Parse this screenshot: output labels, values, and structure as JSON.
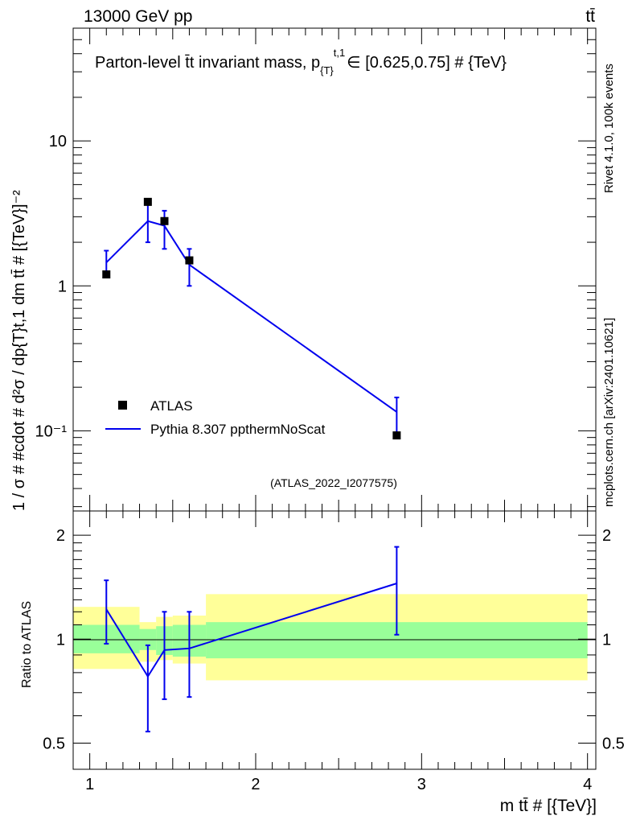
{
  "header": {
    "energy_label": "13000 GeV pp",
    "process_label": "tt̄"
  },
  "side_labels": {
    "rivet": "Rivet 4.1.0,  100k events",
    "mcplots": "mcplots.cern.ch [arXiv:2401.10621]"
  },
  "chart_data": [
    {
      "type": "line",
      "title": "Parton-level t̄t invariant mass, p",
      "title_sub": "{T}",
      "title_sup": "t,1",
      "title_tail": "∈ [0.625,0.75] # {TeV}",
      "ylabel": "1 / σ # #cdot # d²σ / dp{T}t,1 dm tt̄ # [{TeV}]⁻²",
      "xlabel": "m tt̄ # [{TeV}]",
      "yscale": "log",
      "xlim": [
        0.9,
        4.05
      ],
      "ylim": [
        0.028,
        60
      ],
      "y_tick_labels": [
        "10⁻¹",
        "1",
        "10"
      ],
      "x_tick_labels": [
        "1",
        "2",
        "3",
        "4"
      ],
      "watermark": "(ATLAS_2022_I2077575)",
      "legend": [
        {
          "name": "ATLAS",
          "style": "marker"
        },
        {
          "name": "Pythia 8.307 ppthermNoScat",
          "style": "line"
        }
      ],
      "series": [
        {
          "name": "ATLAS",
          "x": [
            1.1,
            1.35,
            1.45,
            1.6,
            2.85
          ],
          "y": [
            1.2,
            3.8,
            2.8,
            1.5,
            0.093
          ],
          "color": "#000000"
        },
        {
          "name": "Pythia 8.307 ppthermNoScat",
          "x": [
            1.1,
            1.35,
            1.45,
            1.6,
            2.85
          ],
          "y": [
            1.45,
            2.8,
            2.6,
            1.4,
            0.135
          ],
          "yerr_low": [
            1.15,
            2.0,
            1.8,
            1.0,
            0.095
          ],
          "yerr_high": [
            1.75,
            3.7,
            3.3,
            1.8,
            0.17
          ],
          "color": "#0000ee"
        }
      ]
    },
    {
      "type": "line",
      "ylabel": "Ratio to ATLAS",
      "yscale": "log",
      "xlim": [
        0.9,
        4.05
      ],
      "ylim": [
        0.42,
        2.35
      ],
      "y_ticks": [
        0.5,
        1,
        2
      ],
      "y_tick_labels": [
        "0.5",
        "1",
        "2"
      ],
      "x_tick_labels": [
        "1",
        "2",
        "3",
        "4"
      ],
      "bands": {
        "edges": [
          0.9,
          1.3,
          1.4,
          1.5,
          1.7,
          4.0
        ],
        "green_low": [
          0.91,
          0.93,
          0.9,
          0.89,
          0.88
        ],
        "green_high": [
          1.1,
          1.07,
          1.09,
          1.1,
          1.12
        ],
        "green_color": "#99ff99",
        "yellow_low": [
          0.82,
          0.86,
          0.87,
          0.85,
          0.76
        ],
        "yellow_high": [
          1.24,
          1.12,
          1.16,
          1.17,
          1.35
        ],
        "yellow_color": "#ffff99"
      },
      "series": [
        {
          "name": "Pythia 8.307 ppthermNoScat",
          "x": [
            1.1,
            1.35,
            1.45,
            1.6,
            2.85
          ],
          "y": [
            1.22,
            0.78,
            0.93,
            0.94,
            1.45
          ],
          "yerr_low": [
            0.97,
            0.54,
            0.67,
            0.68,
            1.03
          ],
          "yerr_high": [
            1.48,
            0.96,
            1.2,
            1.2,
            1.85
          ],
          "color": "#0000ee"
        }
      ]
    }
  ]
}
